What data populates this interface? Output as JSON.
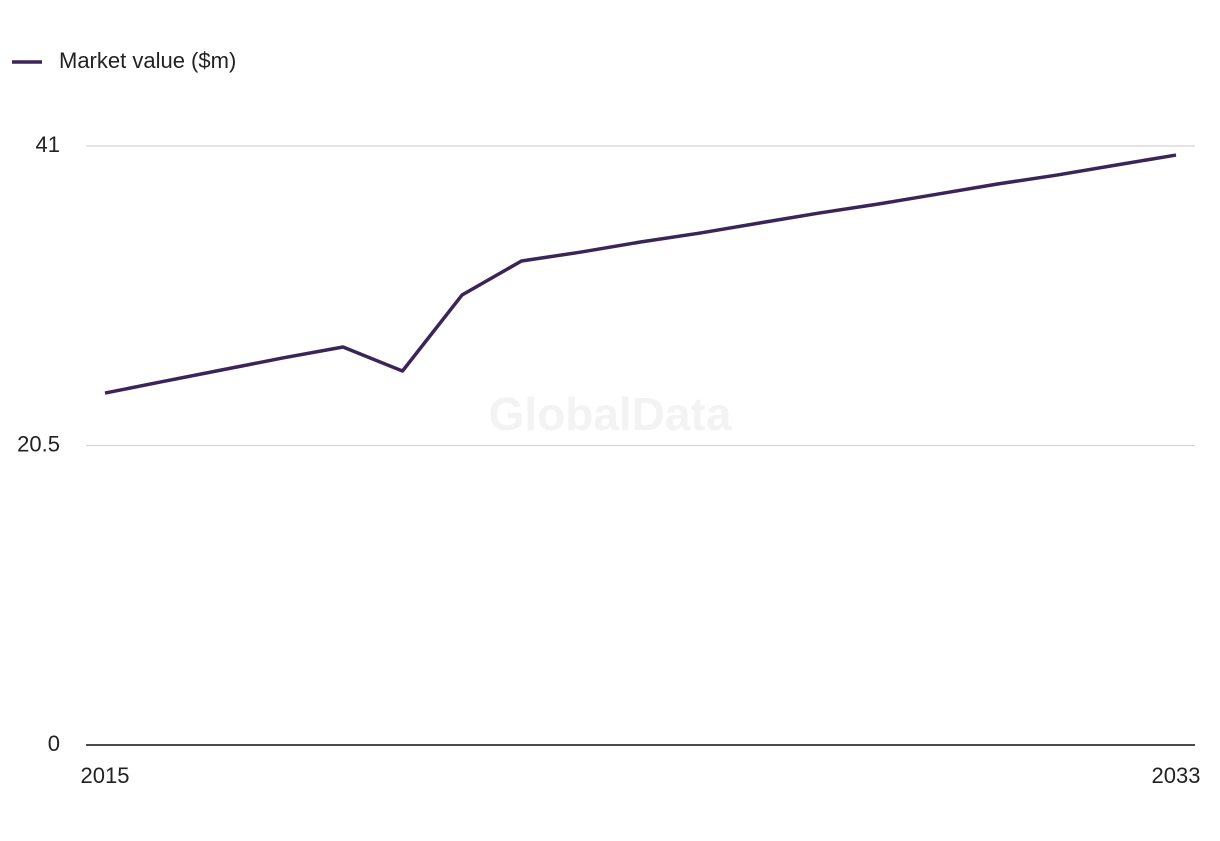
{
  "chart_data": {
    "type": "line",
    "x": [
      2015,
      2016,
      2017,
      2018,
      2019,
      2020,
      2021,
      2022,
      2023,
      2024,
      2025,
      2026,
      2027,
      2028,
      2029,
      2030,
      2031,
      2032,
      2033
    ],
    "series": [
      {
        "name": "Market value ($m)",
        "color": "#3b2458",
        "values": [
          24.09,
          24.9,
          25.7,
          26.5,
          27.24,
          25.6,
          30.8,
          33.13,
          33.74,
          34.43,
          35.04,
          35.73,
          36.41,
          37.03,
          37.71,
          38.4,
          39.01,
          39.7,
          40.38
        ]
      }
    ],
    "xlim": [
      2015,
      2033
    ],
    "xticks": [
      2015,
      2033
    ],
    "ylim": [
      0,
      41
    ],
    "yticks": [
      0,
      20.5,
      41
    ],
    "grid": true,
    "legend": "top-left",
    "watermark": "GlobalData"
  }
}
